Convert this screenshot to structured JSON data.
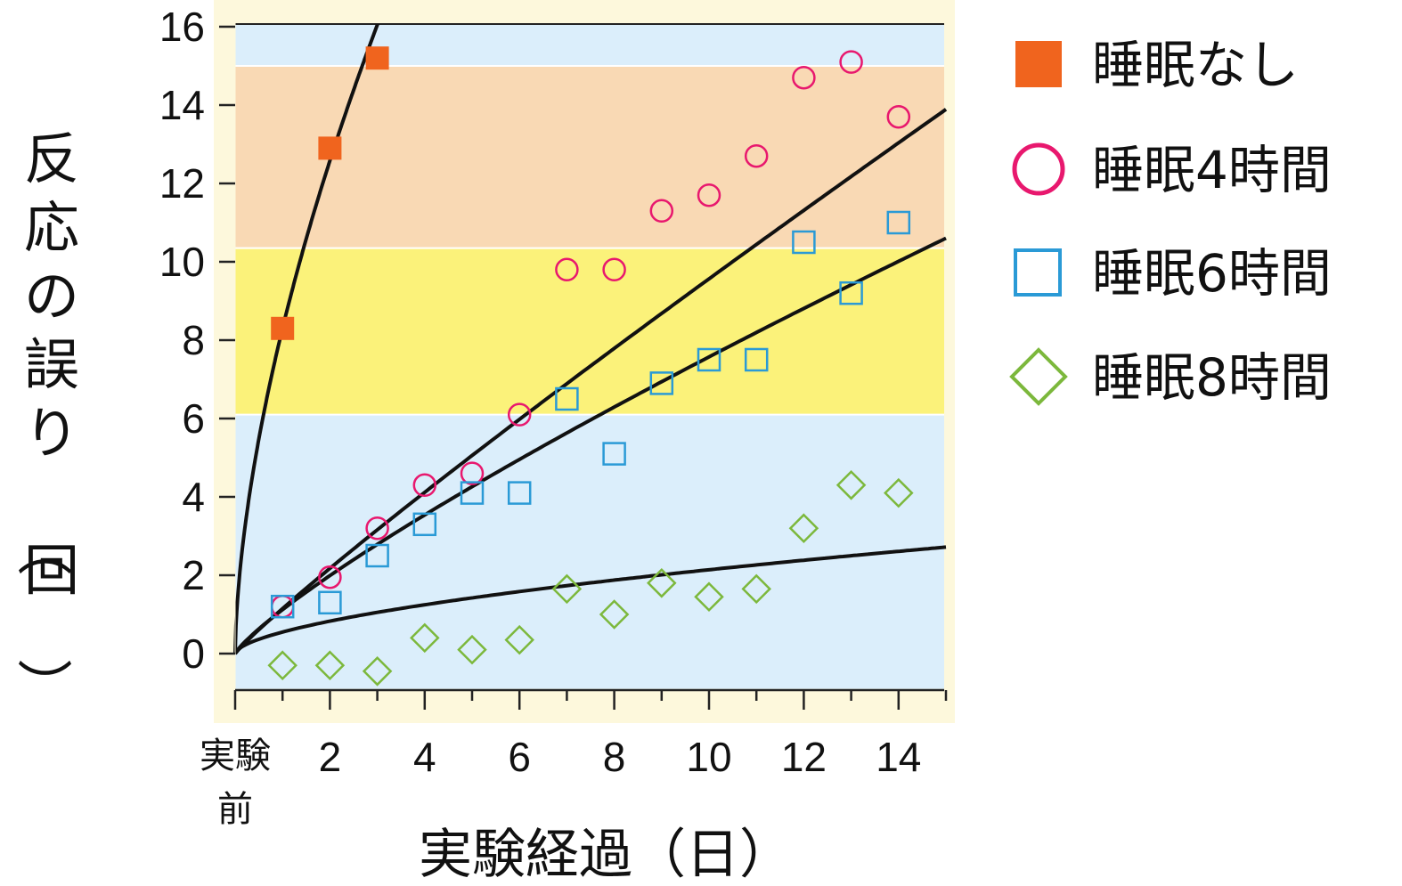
{
  "chart_data": {
    "type": "scatter",
    "title": "",
    "xlabel": "実験経過（日）",
    "ylabel": "反応の誤り（回）",
    "xlim": [
      0,
      15
    ],
    "ylim": [
      -0.9,
      16.1
    ],
    "xticks": [
      {
        "value": 0,
        "label": "実験前"
      },
      {
        "value": 2,
        "label": "2"
      },
      {
        "value": 4,
        "label": "4"
      },
      {
        "value": 6,
        "label": "6"
      },
      {
        "value": 8,
        "label": "8"
      },
      {
        "value": 10,
        "label": "10"
      },
      {
        "value": 12,
        "label": "12"
      },
      {
        "value": 14,
        "label": "14"
      }
    ],
    "yticks": [
      0,
      2,
      4,
      6,
      8,
      10,
      12,
      14,
      16
    ],
    "bands": [
      {
        "from": -0.9,
        "to": 6.1,
        "color": "#dbeefb"
      },
      {
        "from": 6.1,
        "to": 10.35,
        "color": "#fbf27a"
      },
      {
        "from": 10.35,
        "to": 15.0,
        "color": "#f9d9b4"
      },
      {
        "from": 15.0,
        "to": 16.1,
        "color": "#dbeefb"
      }
    ],
    "plot_background": "#fdf8dc",
    "legend_position": "top-right",
    "series": [
      {
        "name": "睡眠なし",
        "marker": "filled-square",
        "color": "#f0641e",
        "x": [
          1,
          2,
          3
        ],
        "y": [
          8.3,
          12.9,
          15.2
        ],
        "fit": {
          "a": 8.3,
          "p": 0.6,
          "xmax": 3.35
        }
      },
      {
        "name": "睡眠4時間",
        "marker": "circle",
        "color": "#e8186e",
        "x": [
          1,
          2,
          3,
          4,
          5,
          6,
          7,
          8,
          9,
          10,
          11,
          12,
          13,
          14
        ],
        "y": [
          1.2,
          1.95,
          3.2,
          4.3,
          4.6,
          6.1,
          9.8,
          9.8,
          11.3,
          11.7,
          12.7,
          14.7,
          15.1,
          13.7
        ],
        "fit": {
          "a": 1.15,
          "p": 0.92,
          "xmax": 15
        }
      },
      {
        "name": "睡眠6時間",
        "marker": "square",
        "color": "#2a9ad6",
        "x": [
          1,
          2,
          3,
          4,
          5,
          6,
          7,
          8,
          9,
          10,
          11,
          12,
          13,
          14
        ],
        "y": [
          1.2,
          1.3,
          2.5,
          3.3,
          4.1,
          4.1,
          6.5,
          5.1,
          6.9,
          7.5,
          7.5,
          10.5,
          9.2,
          11.0
        ],
        "fit": {
          "a": 1.12,
          "p": 0.83,
          "xmax": 15
        }
      },
      {
        "name": "睡眠8時間",
        "marker": "diamond",
        "color": "#7cb83c",
        "x": [
          1,
          2,
          3,
          4,
          5,
          6,
          7,
          8,
          9,
          10,
          11,
          12,
          13,
          14
        ],
        "y": [
          -0.3,
          -0.3,
          -0.45,
          0.4,
          0.1,
          0.35,
          1.65,
          1.0,
          1.8,
          1.45,
          1.65,
          3.2,
          4.3,
          4.1
        ],
        "fit": {
          "a": 0.55,
          "p": 0.59,
          "xmax": 15
        }
      }
    ]
  }
}
